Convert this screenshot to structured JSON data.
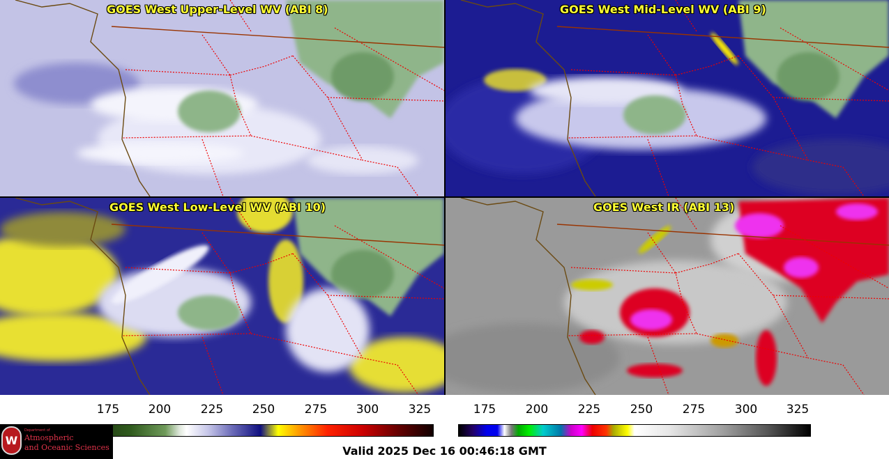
{
  "panels": [
    {
      "id": "upper",
      "title": "GOES West Upper-Level WV (ABI 8)"
    },
    {
      "id": "mid",
      "title": "GOES West Mid-Level WV (ABI 9)"
    },
    {
      "id": "low",
      "title": "GOES West Low-Level WV (ABI 10)"
    },
    {
      "id": "ir",
      "title": "GOES West IR (ABI 13)"
    }
  ],
  "colorbar_wv": {
    "ticks": [
      "175",
      "200",
      "225",
      "250",
      "275",
      "300",
      "325"
    ]
  },
  "colorbar_ir": {
    "ticks": [
      "175",
      "200",
      "225",
      "250",
      "275",
      "300",
      "325"
    ]
  },
  "logo": {
    "dept": "Department of",
    "line1": "Atmospheric",
    "line2": "and Oceanic Sciences",
    "seal": "W"
  },
  "valid_time": "Valid 2025 Dec 16 00:46:18 GMT",
  "colors": {
    "title_text": "#ffff33",
    "state_border": "#ee0000",
    "coastline": "#6b4a12",
    "country_border": "#993300"
  }
}
